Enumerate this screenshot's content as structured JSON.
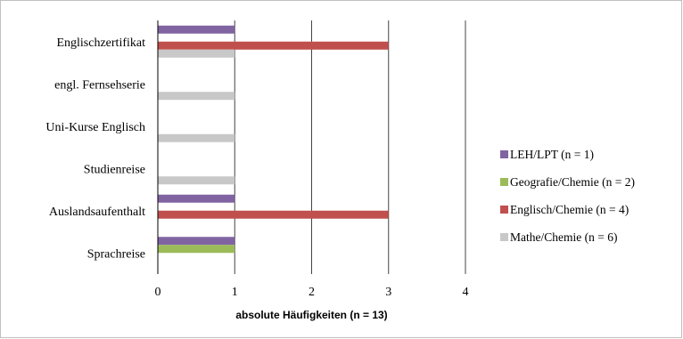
{
  "chart_data": {
    "type": "bar",
    "orientation": "horizontal",
    "categories": [
      "Englischzertifikat",
      "engl. Fernsehserie",
      "Uni-Kurse Englisch",
      "Studienreise",
      "Auslandsaufenthalt",
      "Sprachreise"
    ],
    "series": [
      {
        "name": "LEH/LPT (n = 1)",
        "color": "#8064a2",
        "values": [
          1,
          0,
          0,
          0,
          1,
          1
        ]
      },
      {
        "name": "Geografie/Chemie (n = 2)",
        "color": "#9bbb59",
        "values": [
          0,
          0,
          0,
          0,
          0,
          1
        ]
      },
      {
        "name": "Englisch/Chemie (n = 4)",
        "color": "#c0504d",
        "values": [
          3,
          0,
          0,
          0,
          3,
          0
        ]
      },
      {
        "name": "Mathe/Chemie (n = 6)",
        "color": "#c8c8c8",
        "values": [
          1,
          1,
          1,
          1,
          0,
          0
        ]
      }
    ],
    "xlabel": "absolute Häufigkeiten (n = 13)",
    "xlim": [
      0,
      4
    ],
    "xticks": [
      "0",
      "1",
      "2",
      "3",
      "4"
    ],
    "grid": true,
    "legend_position": "right"
  }
}
